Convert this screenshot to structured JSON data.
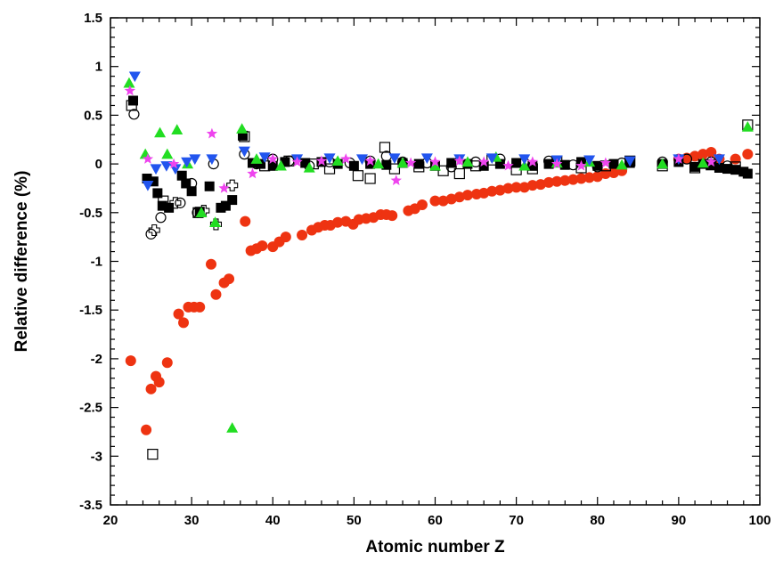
{
  "chart_data": {
    "type": "scatter",
    "title": "",
    "xlabel": "Atomic number Z",
    "ylabel": "Relative difference (%)",
    "xlim": [
      20,
      100
    ],
    "ylim": [
      -3.5,
      1.5
    ],
    "x_ticks": [
      "20",
      "30",
      "40",
      "50",
      "60",
      "70",
      "80",
      "90",
      "100"
    ],
    "y_ticks": [
      "1.5",
      "1",
      "0.5",
      "0",
      "-0.5",
      "-1",
      "-1.5",
      "-2",
      "-2.5",
      "-3",
      "-3.5"
    ],
    "grid": false,
    "legend": "none",
    "series": [
      {
        "marker": "filled-circle",
        "color": "#ee3311",
        "x": [
          22.5,
          24.4,
          25,
          25.6,
          26,
          27,
          28.4,
          29,
          29.6,
          30.3,
          31,
          32.4,
          33,
          34,
          34.6,
          36.6,
          37.3,
          38,
          38.7,
          40,
          40.8,
          41.6,
          43.6,
          44.8,
          45.6,
          46.4,
          47.1,
          48,
          49,
          49.9,
          50.6,
          51.5,
          52.4,
          53.3,
          54,
          54.7,
          56.7,
          57.5,
          58.4,
          60,
          61,
          62,
          63,
          64,
          65.1,
          66,
          67,
          68,
          69,
          70,
          71,
          72,
          73,
          74,
          75,
          76,
          77,
          78,
          79,
          80,
          81,
          82,
          83,
          90,
          91,
          92,
          93,
          94,
          95,
          97,
          98.5
        ],
        "y": [
          -2.02,
          -2.73,
          -2.31,
          -2.18,
          -2.24,
          -2.04,
          -1.54,
          -1.63,
          -1.47,
          -1.47,
          -1.47,
          -1.03,
          -1.34,
          -1.22,
          -1.18,
          -0.59,
          -0.89,
          -0.87,
          -0.84,
          -0.85,
          -0.8,
          -0.75,
          -0.73,
          -0.68,
          -0.65,
          -0.63,
          -0.63,
          -0.6,
          -0.59,
          -0.62,
          -0.57,
          -0.56,
          -0.55,
          -0.52,
          -0.52,
          -0.53,
          -0.48,
          -0.46,
          -0.42,
          -0.38,
          -0.38,
          -0.36,
          -0.34,
          -0.32,
          -0.31,
          -0.3,
          -0.28,
          -0.27,
          -0.25,
          -0.24,
          -0.24,
          -0.22,
          -0.21,
          -0.19,
          -0.18,
          -0.17,
          -0.16,
          -0.15,
          -0.14,
          -0.13,
          -0.1,
          -0.09,
          -0.07,
          0.05,
          0.06,
          0.08,
          0.1,
          0.12,
          0.05,
          0.05,
          0.1
        ]
      },
      {
        "marker": "filled-square",
        "color": "#000000",
        "x": [
          22.8,
          24.5,
          25.3,
          25.8,
          26.4,
          27.2,
          28.8,
          29.3,
          30,
          31,
          32.2,
          33.6,
          34.2,
          35,
          36.3,
          37.5,
          38.5,
          40,
          41.5,
          44,
          46,
          48,
          50,
          52,
          54,
          56,
          58,
          60,
          62,
          64,
          66,
          68,
          70,
          72,
          74,
          76,
          78,
          80,
          82,
          84,
          88,
          90,
          92,
          93,
          94,
          95,
          96,
          97,
          98,
          98.5
        ],
        "y": [
          0.65,
          -0.15,
          -0.18,
          -0.3,
          -0.43,
          -0.45,
          -0.12,
          -0.2,
          -0.28,
          -0.49,
          -0.23,
          -0.45,
          -0.43,
          -0.37,
          0.29,
          0.01,
          0,
          -0.02,
          0.02,
          0.01,
          0.02,
          0,
          -0.02,
          0,
          -0.01,
          0.01,
          0,
          -0.02,
          0.01,
          0,
          -0.02,
          0,
          0.01,
          -0.02,
          0,
          -0.01,
          0.02,
          -0.02,
          0,
          0.01,
          0,
          0.02,
          -0.03,
          0,
          -0.01,
          -0.04,
          -0.05,
          -0.06,
          -0.08,
          -0.1
        ]
      },
      {
        "marker": "open-square",
        "color": "#000000",
        "x": [
          22.6,
          25.2,
          26.5,
          30.8,
          36.5,
          39,
          42,
          45,
          47,
          50.5,
          52,
          53.8,
          55,
          58,
          61,
          63,
          65,
          67,
          70,
          72,
          75,
          78,
          81,
          84,
          88,
          92,
          94,
          97,
          98.5
        ],
        "y": [
          0.6,
          -2.98,
          -0.38,
          -0.5,
          0.28,
          -0.02,
          0.03,
          0,
          -0.05,
          -0.12,
          -0.15,
          0.17,
          -0.05,
          -0.03,
          -0.07,
          -0.1,
          -0.02,
          0.04,
          -0.06,
          -0.05,
          0.03,
          -0.04,
          -0.02,
          0.03,
          -0.02,
          -0.04,
          -0.01,
          -0.03,
          0.4
        ]
      },
      {
        "marker": "open-circle",
        "color": "#000000",
        "x": [
          22.9,
          25,
          26.2,
          28.6,
          30,
          30.7,
          32.7,
          36.5,
          38,
          40,
          42,
          44.5,
          47,
          49.5,
          52,
          54,
          56,
          59,
          62,
          65,
          68,
          71,
          74,
          77,
          80,
          83,
          88,
          91,
          94,
          96
        ],
        "y": [
          0.51,
          -0.72,
          -0.55,
          -0.4,
          -0.2,
          -0.5,
          0,
          0.1,
          0,
          0.05,
          0.03,
          -0.02,
          0.02,
          0.01,
          0.03,
          0.08,
          0.02,
          0.01,
          -0.03,
          0.02,
          0.05,
          0.01,
          0.03,
          -0.01,
          -0.03,
          0.01,
          0.02,
          0.05,
          0.02,
          -0.02
        ]
      },
      {
        "marker": "open-cross",
        "color": "#000000",
        "x": [
          25.4,
          28,
          31.5,
          33,
          35
        ],
        "y": [
          -0.68,
          -0.4,
          -0.48,
          -0.62,
          -0.22
        ]
      },
      {
        "marker": "filled-triangle-up",
        "color": "#22dd22",
        "x": [
          22.3,
          24.3,
          26.1,
          27,
          28.2,
          29.5,
          31.2,
          32.9,
          35,
          36.2,
          38,
          41,
          44.5,
          48,
          53,
          56,
          60,
          64,
          67.5,
          71,
          75,
          79,
          83,
          88,
          93,
          98.5
        ],
        "y": [
          0.83,
          0.1,
          0.32,
          0.1,
          0.35,
          0,
          -0.5,
          -0.6,
          -2.71,
          0.36,
          0.05,
          -0.02,
          -0.04,
          0.03,
          0,
          0.01,
          -0.02,
          0.02,
          0.07,
          -0.02,
          0.01,
          0.02,
          -0.01,
          0,
          0.01,
          0.38
        ]
      },
      {
        "marker": "filled-triangle-down",
        "color": "#2255ee",
        "x": [
          23,
          24.6,
          25.6,
          26.9,
          28,
          29.4,
          30.4,
          32.5,
          36.5,
          39,
          43,
          47,
          51,
          55,
          59,
          63,
          67,
          71,
          75,
          79,
          84,
          90,
          95
        ],
        "y": [
          0.9,
          -0.22,
          -0.05,
          -0.02,
          -0.05,
          0.02,
          0.05,
          0.05,
          0.13,
          0.07,
          0.05,
          0.06,
          0.05,
          0.06,
          0.06,
          0.05,
          0.06,
          0.05,
          0.04,
          0.04,
          0.03,
          0.05,
          0.05
        ]
      },
      {
        "marker": "star",
        "color": "#ee44ee",
        "x": [
          22.4,
          24.6,
          27.8,
          32.5,
          34,
          37.5,
          40,
          43,
          46,
          49,
          52,
          55.2,
          57,
          60,
          63,
          66,
          69,
          72,
          75,
          78,
          81,
          90,
          94
        ],
        "y": [
          0.75,
          0.05,
          0,
          0.31,
          -0.25,
          -0.1,
          0.05,
          0.02,
          0.03,
          0.05,
          0.03,
          -0.17,
          0.01,
          0.02,
          0.03,
          0.02,
          -0.02,
          0.02,
          0,
          -0.02,
          0.01,
          0.05,
          0.02
        ]
      }
    ]
  }
}
